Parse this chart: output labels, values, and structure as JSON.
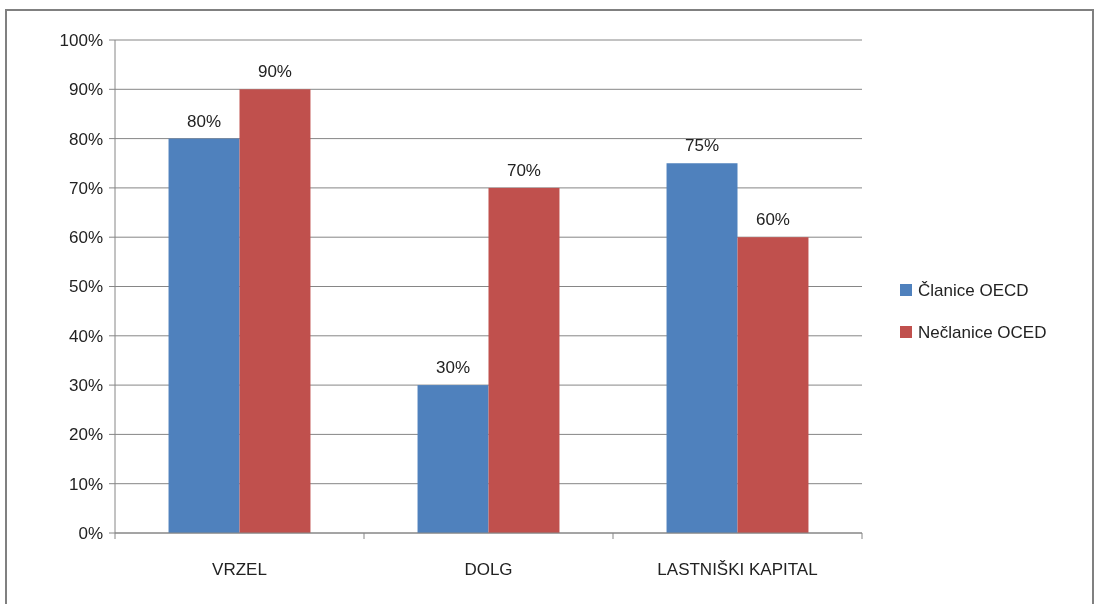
{
  "chart_data": {
    "type": "bar",
    "categories": [
      "VRZEL",
      "DOLG",
      "LASTNIŠKI KAPITAL"
    ],
    "series": [
      {
        "name": "Članice OECD",
        "color": "#4f81bd",
        "values": [
          80,
          30,
          75
        ],
        "value_labels": [
          "80%",
          "30%",
          "75%"
        ]
      },
      {
        "name": "Nečlanice OCED",
        "color": "#c0504d",
        "values": [
          90,
          70,
          60
        ],
        "value_labels": [
          "90%",
          "70%",
          "60%"
        ]
      }
    ],
    "ylim": [
      0,
      100
    ],
    "yticks": [
      {
        "value": 0,
        "label": "0%"
      },
      {
        "value": 10,
        "label": "10%"
      },
      {
        "value": 20,
        "label": "20%"
      },
      {
        "value": 30,
        "label": "30%"
      },
      {
        "value": 40,
        "label": "40%"
      },
      {
        "value": 50,
        "label": "50%"
      },
      {
        "value": 60,
        "label": "60%"
      },
      {
        "value": 70,
        "label": "70%"
      },
      {
        "value": 80,
        "label": "80%"
      },
      {
        "value": 90,
        "label": "90%"
      },
      {
        "value": 100,
        "label": "100%"
      }
    ],
    "grid": "y",
    "legend": "right"
  }
}
